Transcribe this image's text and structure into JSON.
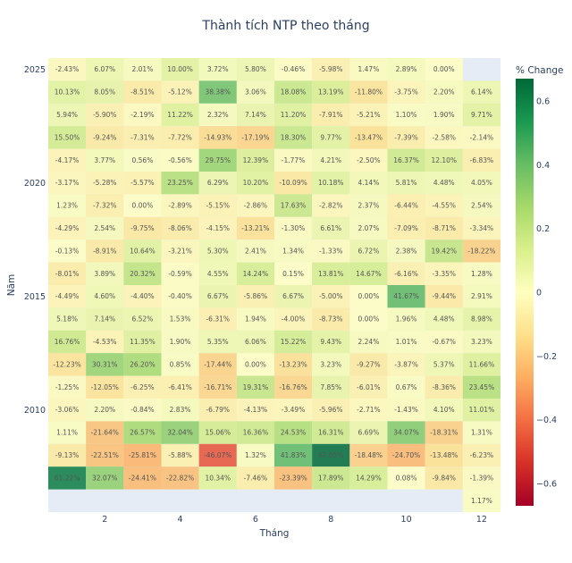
{
  "chart_data": {
    "type": "heatmap",
    "title": "Thành tích NTP theo tháng",
    "xlabel": "Tháng",
    "ylabel": "Năm",
    "colorbar_title": "% Change",
    "colorscale": "RdYlGn",
    "zrange": [
      -0.6705,
      0.6705
    ],
    "colorbar_ticks": [
      0.6,
      0.4,
      0.2,
      0,
      -0.2,
      -0.4,
      -0.6
    ],
    "colorbar_tick_labels": [
      "0.6",
      "0.4",
      "0.2",
      "0",
      "−0.2",
      "−0.4",
      "−0.6"
    ],
    "x_ticks": [
      2,
      4,
      6,
      8,
      10,
      12
    ],
    "y_ticks": [
      2010,
      2015,
      2020,
      2025
    ],
    "months": [
      1,
      2,
      3,
      4,
      5,
      6,
      7,
      8,
      9,
      10,
      11,
      12
    ],
    "rows": [
      {
        "year": 2025,
        "values": [
          -2.43,
          6.07,
          2.01,
          10.0,
          3.72,
          5.8,
          -0.46,
          -5.98,
          1.47,
          2.89,
          0.0,
          null
        ]
      },
      {
        "year": 2024,
        "values": [
          10.13,
          8.05,
          -8.51,
          -5.12,
          38.38,
          3.06,
          18.08,
          13.19,
          -11.8,
          -3.75,
          2.2,
          6.14
        ]
      },
      {
        "year": 2023,
        "values": [
          5.94,
          -5.9,
          -2.19,
          11.22,
          2.32,
          7.14,
          11.2,
          -7.91,
          -5.21,
          1.1,
          1.9,
          9.71
        ]
      },
      {
        "year": 2022,
        "values": [
          15.5,
          -9.24,
          -7.31,
          -7.72,
          -14.93,
          -17.19,
          18.3,
          9.77,
          -13.47,
          -7.39,
          -2.58,
          -2.14
        ]
      },
      {
        "year": 2021,
        "values": [
          -4.17,
          3.77,
          0.56,
          -0.56,
          29.75,
          12.39,
          -1.77,
          4.21,
          -2.5,
          16.37,
          12.1,
          -6.83
        ]
      },
      {
        "year": 2020,
        "values": [
          -3.17,
          -5.28,
          -5.57,
          23.25,
          6.29,
          10.2,
          -10.09,
          10.18,
          4.14,
          5.81,
          4.48,
          4.05
        ]
      },
      {
        "year": 2019,
        "values": [
          1.23,
          -7.32,
          0.0,
          -2.89,
          -5.15,
          -2.86,
          17.63,
          -2.82,
          2.37,
          -6.44,
          -4.55,
          2.54
        ]
      },
      {
        "year": 2018,
        "values": [
          -4.29,
          2.54,
          -9.75,
          -8.06,
          -4.15,
          -13.21,
          -1.3,
          6.61,
          2.07,
          -7.09,
          -8.71,
          -3.34
        ]
      },
      {
        "year": 2017,
        "values": [
          -0.13,
          -8.91,
          10.64,
          -3.21,
          5.3,
          2.41,
          1.34,
          -1.33,
          6.72,
          2.38,
          19.42,
          -18.22
        ]
      },
      {
        "year": 2016,
        "values": [
          -8.01,
          3.89,
          20.32,
          -0.59,
          4.55,
          14.24,
          0.15,
          13.81,
          14.67,
          -6.16,
          -3.35,
          1.28
        ]
      },
      {
        "year": 2015,
        "values": [
          -4.49,
          4.6,
          -4.4,
          -0.4,
          6.67,
          -5.86,
          6.67,
          -5.0,
          0.0,
          41.67,
          -9.44,
          2.91
        ]
      },
      {
        "year": 2014,
        "values": [
          5.18,
          7.14,
          6.52,
          1.53,
          -6.31,
          1.94,
          -4.0,
          -8.73,
          0.0,
          1.96,
          4.48,
          8.98
        ]
      },
      {
        "year": 2013,
        "values": [
          16.76,
          -4.53,
          11.35,
          1.9,
          5.35,
          6.06,
          15.22,
          9.43,
          2.24,
          1.01,
          -0.67,
          3.23
        ]
      },
      {
        "year": 2012,
        "values": [
          -12.23,
          30.31,
          26.2,
          0.85,
          -17.44,
          0.0,
          -13.23,
          3.23,
          -9.27,
          -3.87,
          5.37,
          11.66
        ]
      },
      {
        "year": 2011,
        "values": [
          -1.25,
          -12.05,
          -6.25,
          -6.41,
          -16.71,
          19.31,
          -16.76,
          7.85,
          -6.01,
          0.67,
          -8.36,
          23.45
        ]
      },
      {
        "year": 2010,
        "values": [
          -3.06,
          2.2,
          -0.84,
          2.83,
          -6.79,
          -4.13,
          -3.49,
          -5.96,
          -2.71,
          -1.43,
          4.1,
          11.01
        ]
      },
      {
        "year": 2009,
        "values": [
          1.11,
          -21.64,
          26.57,
          32.04,
          15.06,
          16.36,
          24.53,
          16.31,
          6.69,
          34.07,
          -18.31,
          1.31
        ]
      },
      {
        "year": 2008,
        "values": [
          -9.13,
          -22.51,
          -25.81,
          -5.88,
          -46.07,
          1.32,
          41.83,
          67.05,
          -18.48,
          -24.7,
          -13.48,
          -6.23
        ]
      },
      {
        "year": 2007,
        "values": [
          61.22,
          32.07,
          -24.41,
          -22.82,
          10.34,
          -7.46,
          -23.39,
          17.89,
          14.29,
          0.08,
          -9.84,
          -1.39
        ]
      },
      {
        "year": 2006,
        "values": [
          null,
          null,
          null,
          null,
          null,
          null,
          null,
          null,
          null,
          null,
          null,
          1.17
        ]
      }
    ]
  }
}
